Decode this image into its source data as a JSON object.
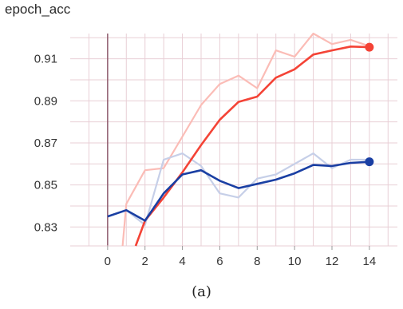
{
  "chart_data": {
    "type": "line",
    "title": "epoch_acc",
    "caption": "(a)",
    "xlim": [
      -2,
      15.5
    ],
    "ylim": [
      0.821,
      0.922
    ],
    "xticks": [
      0,
      2,
      4,
      6,
      8,
      10,
      12,
      14
    ],
    "yticks": [
      0.83,
      0.85,
      0.87,
      0.89,
      0.91
    ],
    "grid": true,
    "legend": "none",
    "series": [
      {
        "color": "#f44336",
        "raw_color": "#fbbcb6",
        "x": [
          1.5,
          2,
          3,
          4,
          5,
          6,
          7,
          8,
          9,
          10,
          11,
          12,
          13,
          14
        ],
        "values": [
          0.821,
          0.833,
          0.844,
          0.856,
          0.869,
          0.881,
          0.8895,
          0.892,
          0.901,
          0.905,
          0.912,
          0.914,
          0.9158,
          0.9155
        ],
        "raw_x": [
          0.8,
          1,
          2,
          3,
          4,
          5,
          6,
          7,
          8,
          9,
          10,
          11,
          12,
          13,
          14
        ],
        "raw_values": [
          0.821,
          0.841,
          0.857,
          0.858,
          0.873,
          0.888,
          0.898,
          0.902,
          0.896,
          0.914,
          0.911,
          0.922,
          0.917,
          0.919,
          0.916
        ]
      },
      {
        "color": "#1a3fa3",
        "raw_color": "#c6cfe8",
        "x": [
          0,
          1,
          2,
          3,
          4,
          5,
          6,
          7,
          8,
          9,
          10,
          11,
          12,
          13,
          14
        ],
        "values": [
          0.835,
          0.838,
          0.833,
          0.846,
          0.855,
          0.857,
          0.852,
          0.8485,
          0.8505,
          0.8525,
          0.8555,
          0.8595,
          0.859,
          0.8605,
          0.861
        ],
        "raw_x": [
          0,
          1,
          2,
          3,
          4,
          5,
          6,
          7,
          8,
          9,
          10,
          11,
          12,
          13,
          14
        ],
        "raw_values": [
          0.835,
          0.838,
          0.831,
          0.862,
          0.865,
          0.859,
          0.846,
          0.844,
          0.853,
          0.855,
          0.86,
          0.865,
          0.858,
          0.862,
          0.862
        ]
      }
    ]
  }
}
